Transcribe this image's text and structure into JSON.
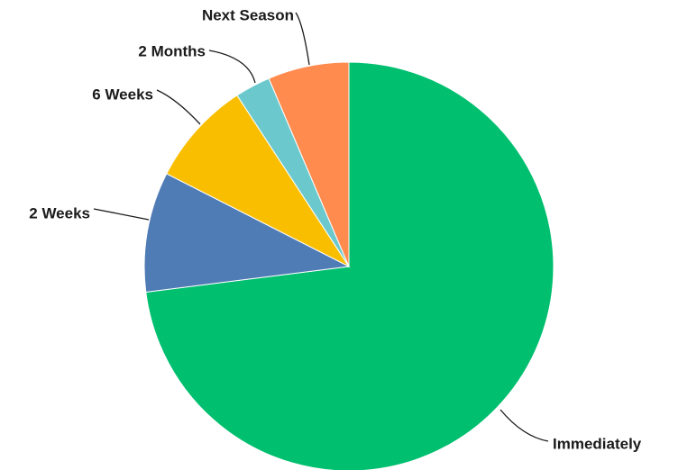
{
  "chart_data": {
    "type": "pie",
    "title": "",
    "slices": [
      {
        "label": "Immediately",
        "value": 73.0,
        "color": "#00BF6F"
      },
      {
        "label": "2 Weeks",
        "value": 9.5,
        "color": "#507CB6"
      },
      {
        "label": "6 Weeks",
        "value": 8.3,
        "color": "#F9BE00"
      },
      {
        "label": "2 Months",
        "value": 2.8,
        "color": "#6BC8CD"
      },
      {
        "label": "Next Season",
        "value": 6.4,
        "color": "#FF8B4F"
      }
    ],
    "start_angle_deg": 0,
    "direction": "clockwise",
    "legend": "none",
    "labels": "outside-with-leader-lines"
  }
}
